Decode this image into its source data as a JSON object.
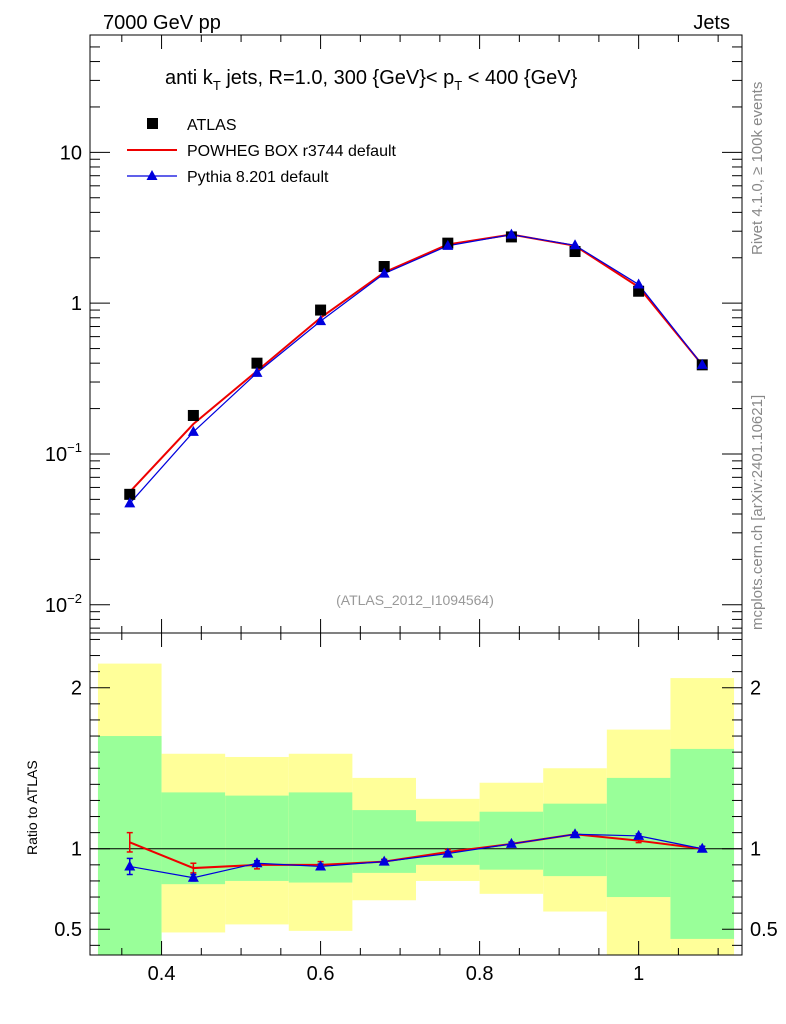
{
  "header": {
    "left": "7000 GeV pp",
    "right": "Jets",
    "side_top": "Rivet 4.1.0, ≥ 100k events",
    "side_bottom": "mcplots.cern.ch [arXiv:2401.10621]",
    "watermark": "(ATLAS_2012_I1094564)"
  },
  "chart_data": {
    "type": "scatter",
    "title": {
      "main": "anti k",
      "sub1": "T",
      "mid": " jets, R=1.0,  300 {GeV}< p",
      "sub2": "T",
      "end": " < 400 {GeV}"
    },
    "x": [
      0.36,
      0.44,
      0.52,
      0.6,
      0.68,
      0.76,
      0.84,
      0.92,
      1.0,
      1.08
    ],
    "xlim": [
      0.31,
      1.13
    ],
    "x_ticks": [
      "0.4",
      "0.6",
      "0.8",
      "1"
    ],
    "bin_edges": [
      0.32,
      0.4,
      0.48,
      0.56,
      0.64,
      0.72,
      0.8,
      0.88,
      0.96,
      1.04,
      1.12
    ],
    "main_panel": {
      "scale": "log",
      "ylim": [
        0.0065,
        60
      ],
      "y_tick_labels": [
        {
          "value": 10,
          "base": "10",
          "exp": ""
        },
        {
          "value": 1,
          "base": "1",
          "exp": ""
        },
        {
          "value": 0.1,
          "base": "10",
          "exp": "−1"
        },
        {
          "value": 0.01,
          "base": "10",
          "exp": "−2"
        }
      ],
      "series": [
        {
          "name": "ATLAS",
          "marker": "square",
          "color": "#000000",
          "values": [
            0.054,
            0.18,
            0.4,
            0.9,
            1.75,
            2.5,
            2.75,
            2.2,
            1.2,
            0.39
          ]
        },
        {
          "name": "POWHEG BOX r3744 default",
          "marker": "line",
          "color": "#ee0000",
          "values": [
            0.056,
            0.158,
            0.355,
            0.8,
            1.6,
            2.45,
            2.85,
            2.4,
            1.28,
            0.39
          ]
        },
        {
          "name": "Pythia 8.201 default",
          "marker": "triangle",
          "color": "#0000dd",
          "values": [
            0.047,
            0.14,
            0.345,
            0.76,
            1.57,
            2.4,
            2.85,
            2.42,
            1.33,
            0.39
          ]
        }
      ]
    },
    "ratio_panel": {
      "ylabel": "Ratio to ATLAS",
      "ylim": [
        0.34,
        2.34
      ],
      "y_ticks": [
        {
          "value": 2,
          "label": "2"
        },
        {
          "value": 1,
          "label": "1"
        },
        {
          "value": 0.5,
          "label": "0.5"
        }
      ],
      "band_outer": [
        [
          0.32,
          2.15
        ],
        [
          0.48,
          1.59
        ],
        [
          0.53,
          1.57
        ],
        [
          0.49,
          1.59
        ],
        [
          0.68,
          1.44
        ],
        [
          0.8,
          1.31
        ],
        [
          0.72,
          1.41
        ],
        [
          0.61,
          1.5
        ],
        [
          0.34,
          1.74
        ],
        [
          0.34,
          2.06
        ]
      ],
      "band_inner": [
        [
          0.32,
          1.7
        ],
        [
          0.78,
          1.35
        ],
        [
          0.8,
          1.33
        ],
        [
          0.79,
          1.35
        ],
        [
          0.85,
          1.24
        ],
        [
          0.9,
          1.17
        ],
        [
          0.87,
          1.23
        ],
        [
          0.83,
          1.28
        ],
        [
          0.7,
          1.44
        ],
        [
          0.44,
          1.62
        ]
      ],
      "series": [
        {
          "name": "POWHEG BOX r3744 default",
          "color": "#ee0000",
          "values": [
            1.04,
            0.88,
            0.9,
            0.9,
            0.92,
            0.98,
            1.03,
            1.09,
            1.05,
            1.0
          ],
          "errors": [
            0.06,
            0.03,
            0.025,
            0.02,
            0.015,
            0.015,
            0.012,
            0.012,
            0.012,
            0.015
          ]
        },
        {
          "name": "Pythia 8.201 default",
          "color": "#0000dd",
          "values": [
            0.89,
            0.82,
            0.91,
            0.89,
            0.92,
            0.97,
            1.03,
            1.09,
            1.08,
            1.0
          ],
          "errors": [
            0.05,
            0.02,
            0.015,
            0.015,
            0.012,
            0.012,
            0.01,
            0.01,
            0.012,
            0.015
          ]
        }
      ]
    },
    "colors": {
      "band_outer": "#ffff99",
      "band_inner": "#99ff99",
      "frame": "#000000",
      "label_gray": "#888888",
      "watermark_gray": "#999999"
    }
  }
}
